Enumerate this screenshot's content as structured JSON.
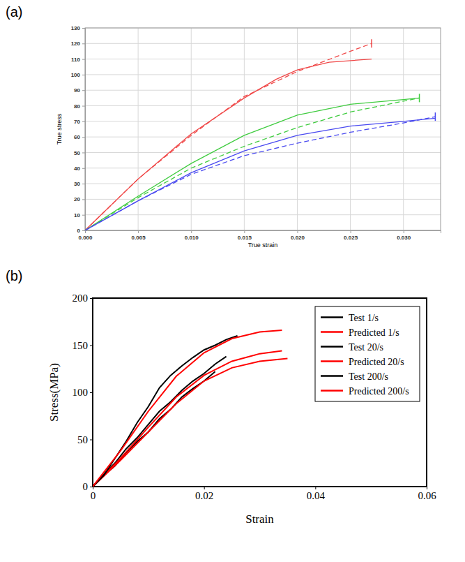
{
  "chart_data": [
    {
      "type": "line",
      "title": "(a)",
      "x_label": "True strain",
      "y_label": "True stress",
      "xlim": [
        0,
        0.0335
      ],
      "xticks": [
        {
          "value": 0,
          "label": "0.000"
        },
        0.005,
        {
          "value": 0.01,
          "label": "0.010"
        },
        0.015,
        {
          "value": 0.02,
          "label": "0.020"
        },
        0.025,
        {
          "value": 0.03,
          "label": "0.030"
        }
      ],
      "ylim": [
        0,
        130
      ],
      "yticks": [
        0,
        10,
        20,
        30,
        40,
        50,
        60,
        70,
        80,
        90,
        100,
        110,
        120,
        130
      ],
      "grid": true,
      "series": [
        {
          "color": "#f04848",
          "line_style": "solid",
          "x": [
            0,
            0.005,
            0.01,
            0.015,
            0.018,
            0.02,
            0.023,
            0.027
          ],
          "values": [
            0,
            33,
            62,
            85,
            97,
            103,
            108,
            110
          ]
        },
        {
          "color": "#f04848",
          "line_style": "dashed",
          "marker": "end-bar",
          "x": [
            0,
            0.005,
            0.01,
            0.015,
            0.02,
            0.025,
            0.027
          ],
          "values": [
            0,
            33,
            61,
            86,
            102,
            115,
            120
          ]
        },
        {
          "color": "#40cc40",
          "line_style": "solid",
          "x": [
            0,
            0.005,
            0.01,
            0.015,
            0.02,
            0.025,
            0.03,
            0.0315
          ],
          "values": [
            0,
            22,
            43,
            61,
            74,
            81,
            84,
            85
          ]
        },
        {
          "color": "#40cc40",
          "line_style": "dashed",
          "marker": "end-bar",
          "x": [
            0,
            0.005,
            0.01,
            0.015,
            0.02,
            0.025,
            0.03,
            0.0315
          ],
          "values": [
            0,
            21,
            40,
            54,
            66,
            76,
            83,
            85
          ]
        },
        {
          "color": "#4a4af0",
          "line_style": "solid",
          "x": [
            0,
            0.005,
            0.01,
            0.015,
            0.02,
            0.025,
            0.03,
            0.033
          ],
          "values": [
            0,
            19,
            37,
            51,
            61,
            67,
            70,
            72
          ]
        },
        {
          "color": "#4a4af0",
          "line_style": "dashed",
          "marker": "end-bar",
          "x": [
            0,
            0.005,
            0.01,
            0.015,
            0.02,
            0.025,
            0.03,
            0.033
          ],
          "values": [
            0,
            19,
            36,
            48,
            56,
            63,
            69,
            73
          ]
        }
      ]
    },
    {
      "type": "line",
      "title": "(b)",
      "x_label": "Strain",
      "y_label": "Stress(MPa)",
      "xlim": [
        0,
        0.06
      ],
      "xticks": [
        0,
        0.02,
        0.04,
        0.06
      ],
      "ylim": [
        0,
        200
      ],
      "yticks": [
        0,
        50,
        100,
        150,
        200
      ],
      "grid": false,
      "legend": "right",
      "series": [
        {
          "name": "Test 1/s",
          "color": "#000000",
          "line_style": "solid",
          "x": [
            0,
            0.002,
            0.004,
            0.006,
            0.008,
            0.01,
            0.012,
            0.014,
            0.016,
            0.018,
            0.02,
            0.022
          ],
          "values": [
            0,
            12,
            22,
            36,
            48,
            58,
            72,
            82,
            95,
            104,
            112,
            122
          ]
        },
        {
          "name": "Predicted 1/s",
          "color": "#ff0000",
          "line_style": "solid",
          "x": [
            0,
            0.005,
            0.01,
            0.015,
            0.02,
            0.025,
            0.03,
            0.035
          ],
          "values": [
            0,
            28,
            58,
            88,
            112,
            126,
            133,
            136
          ]
        },
        {
          "name": "Test 20/s",
          "color": "#000000",
          "line_style": "solid",
          "x": [
            0,
            0.002,
            0.004,
            0.006,
            0.008,
            0.01,
            0.012,
            0.014,
            0.016,
            0.018,
            0.02,
            0.022,
            0.024
          ],
          "values": [
            0,
            13,
            25,
            40,
            52,
            66,
            80,
            90,
            102,
            112,
            120,
            130,
            138
          ]
        },
        {
          "name": "Predicted 20/s",
          "color": "#ff0000",
          "line_style": "solid",
          "x": [
            0,
            0.005,
            0.01,
            0.015,
            0.02,
            0.025,
            0.03,
            0.034
          ],
          "values": [
            0,
            30,
            63,
            95,
            118,
            133,
            141,
            144
          ]
        },
        {
          "name": "Test 200/s",
          "color": "#000000",
          "line_style": "solid",
          "x": [
            0,
            0.002,
            0.004,
            0.006,
            0.008,
            0.01,
            0.012,
            0.014,
            0.016,
            0.018,
            0.02,
            0.022,
            0.024,
            0.026
          ],
          "values": [
            0,
            12,
            30,
            48,
            68,
            85,
            105,
            118,
            128,
            137,
            145,
            150,
            156,
            160
          ]
        },
        {
          "name": "Predicted 200/s",
          "color": "#ff0000",
          "line_style": "solid",
          "x": [
            0,
            0.005,
            0.01,
            0.015,
            0.02,
            0.025,
            0.03,
            0.034
          ],
          "values": [
            0,
            38,
            80,
            117,
            142,
            157,
            164,
            166
          ]
        }
      ]
    }
  ]
}
